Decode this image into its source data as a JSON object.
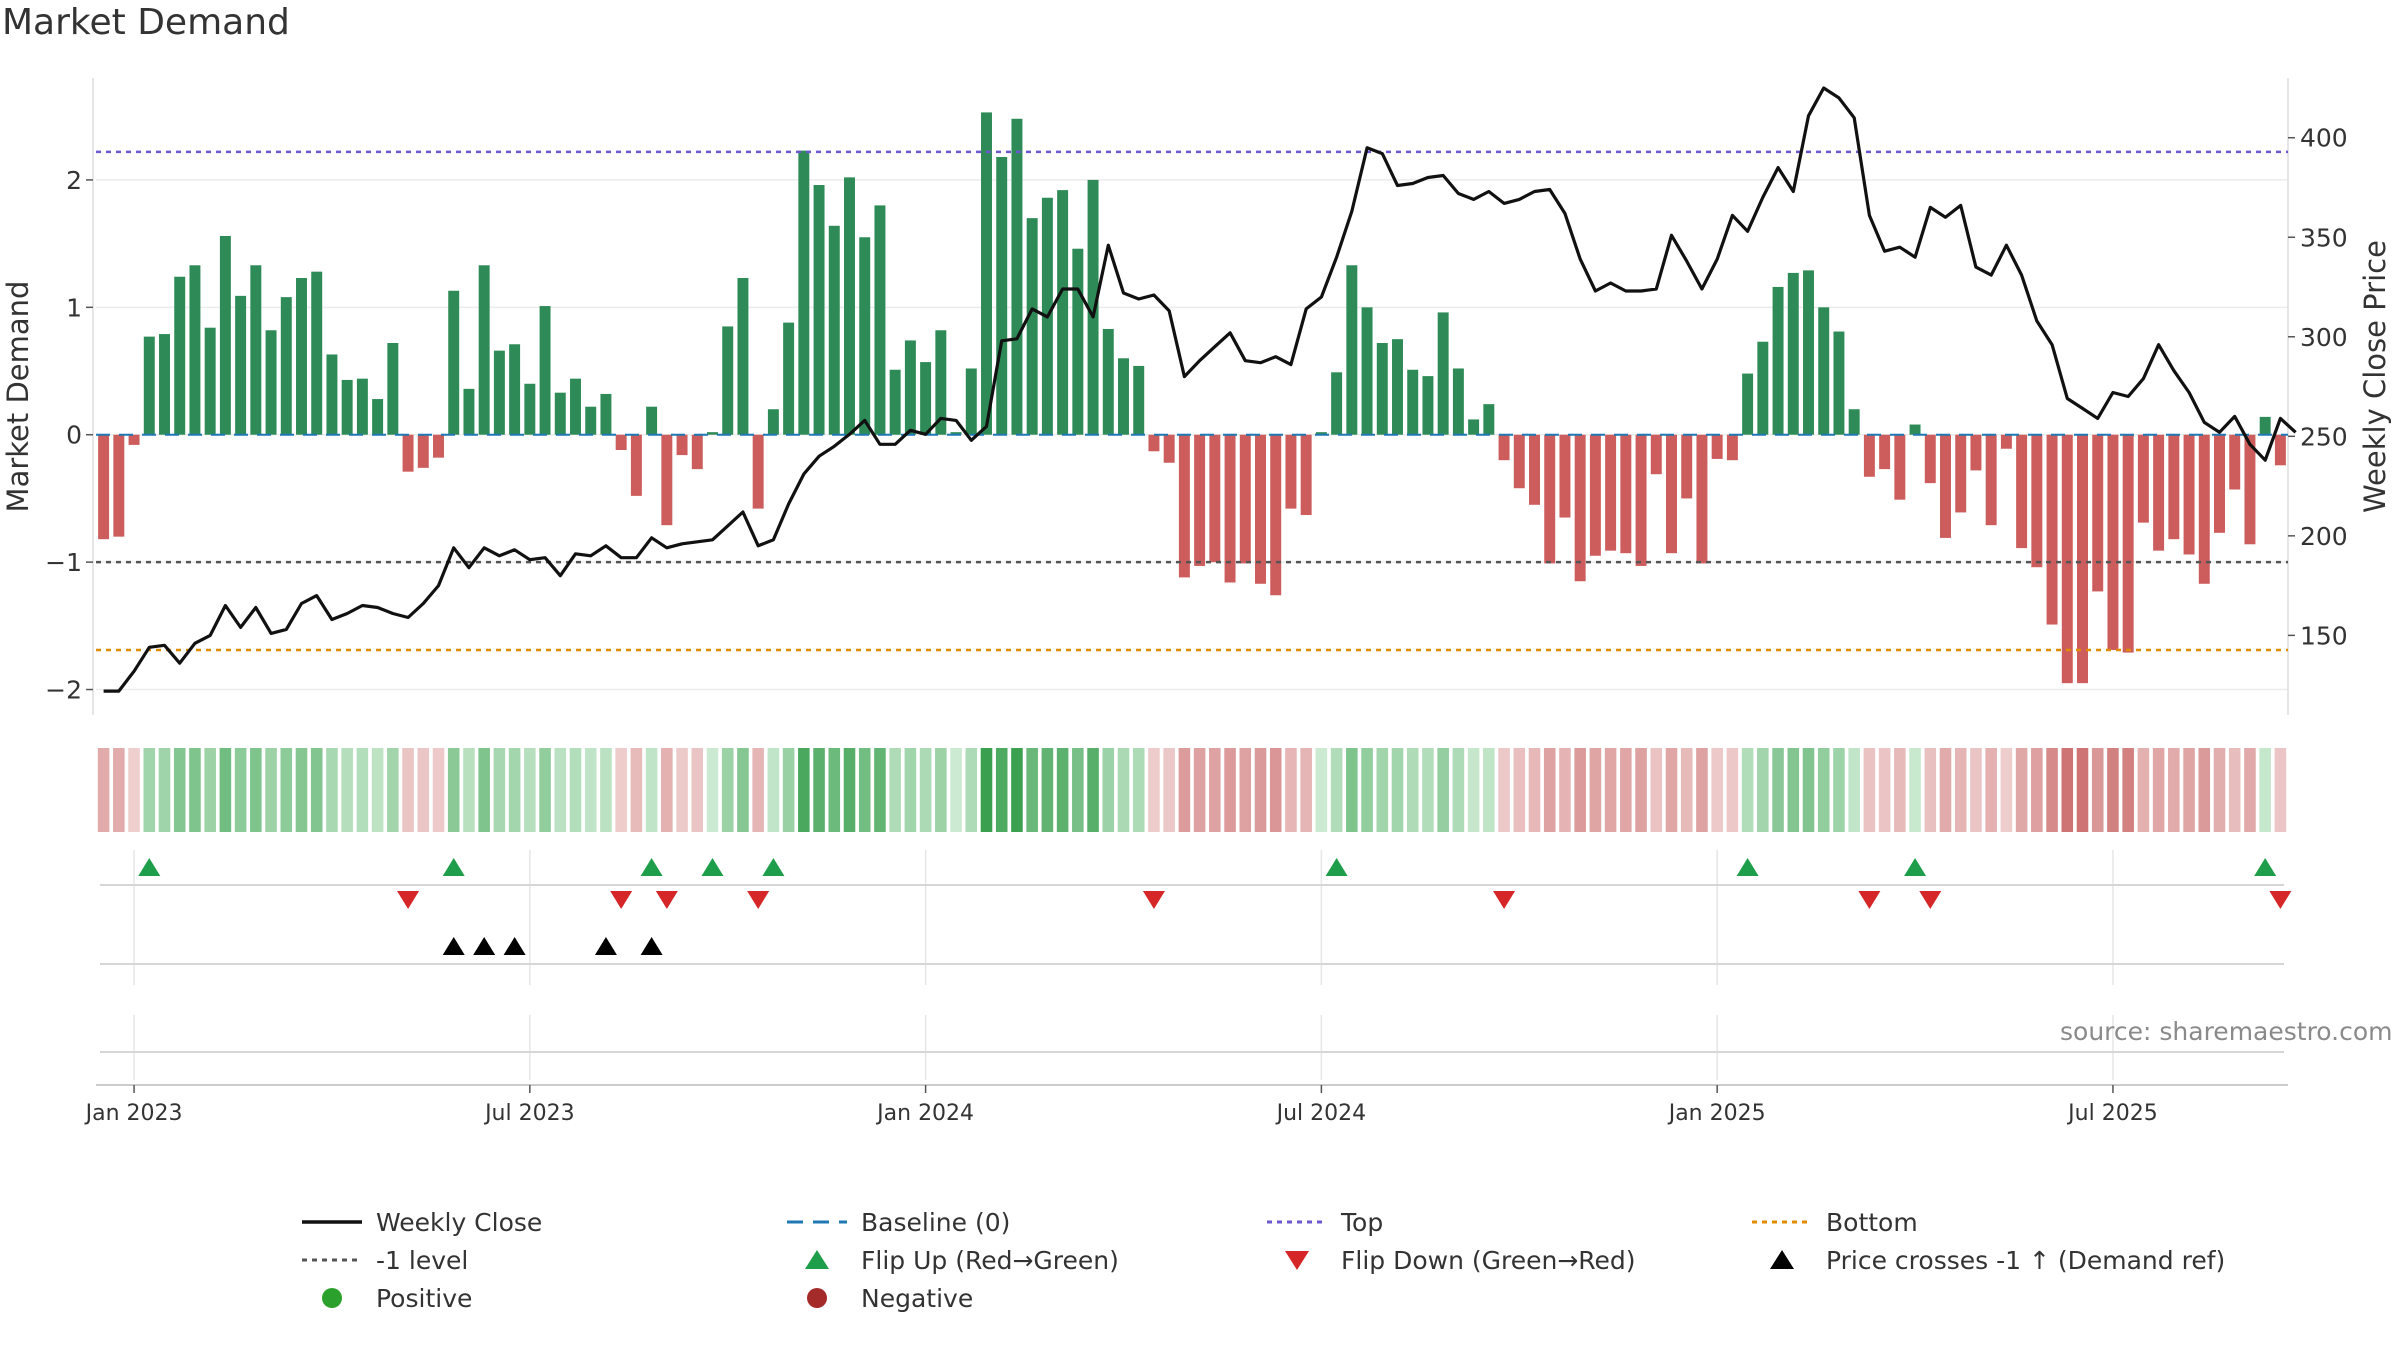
{
  "title": "Market Demand",
  "source": "source: sharemaestro.com",
  "colors": {
    "pos_bar": "#2e8b57",
    "neg_bar": "#cd5c5c",
    "price": "#111111",
    "top": "#6a5acd",
    "bottom": "#e08c00",
    "minus1": "#555555",
    "baseline": "#1f77b4",
    "flip_up": "#1e9e4a",
    "flip_down": "#d62728",
    "cross": "#000000",
    "positive_dot": "#2ca02c",
    "negative_dot": "#a52a2a"
  },
  "chart_data": {
    "type": "bar",
    "title": "Market Demand",
    "ylabel": "Market Demand",
    "y2label": "Weekly Close Price",
    "ylim": [
      -2.2,
      2.8
    ],
    "y2lim": [
      110,
      430
    ],
    "yticks": [
      -2,
      -1,
      0,
      1,
      2
    ],
    "y2ticks": [
      150,
      200,
      250,
      300,
      350,
      400
    ],
    "xlabels": [
      "Jan 2023",
      "Jul 2023",
      "Jan 2024",
      "Jul 2024",
      "Jan 2025",
      "Jul 2025"
    ],
    "xlabel_week_index": [
      2,
      28,
      54,
      80,
      106,
      132
    ],
    "levels": {
      "top": 2.22,
      "bottom": -1.69,
      "minus1": -1,
      "baseline": 0
    },
    "demand": [
      -0.82,
      -0.8,
      -0.08,
      0.77,
      0.79,
      1.24,
      1.33,
      0.84,
      1.56,
      1.09,
      1.33,
      0.82,
      1.08,
      1.23,
      1.28,
      0.63,
      0.43,
      0.44,
      0.28,
      0.72,
      -0.29,
      -0.26,
      -0.18,
      1.13,
      0.36,
      1.33,
      0.66,
      0.71,
      0.4,
      1.01,
      0.33,
      0.44,
      0.22,
      0.32,
      -0.12,
      -0.48,
      0.22,
      -0.71,
      -0.16,
      -0.27,
      0.02,
      0.85,
      1.23,
      -0.58,
      0.2,
      0.88,
      2.23,
      1.96,
      1.64,
      2.02,
      1.55,
      1.8,
      0.51,
      0.74,
      0.57,
      0.82,
      0.02,
      0.52,
      2.53,
      2.18,
      2.48,
      1.7,
      1.86,
      1.92,
      1.46,
      2.0,
      0.83,
      0.6,
      0.54,
      -0.13,
      -0.22,
      -1.12,
      -1.03,
      -1.0,
      -1.16,
      -1.01,
      -1.17,
      -1.26,
      -0.58,
      -0.63,
      0.02,
      0.49,
      1.33,
      1.0,
      0.72,
      0.75,
      0.51,
      0.46,
      0.96,
      0.52,
      0.12,
      0.24,
      -0.2,
      -0.42,
      -0.55,
      -1.01,
      -0.65,
      -1.15,
      -0.95,
      -0.91,
      -0.93,
      -1.03,
      -0.31,
      -0.93,
      -0.5,
      -1.01,
      -0.19,
      -0.2,
      0.48,
      0.73,
      1.16,
      1.27,
      1.29,
      1.0,
      0.81,
      0.2,
      -0.33,
      -0.27,
      -0.51,
      0.08,
      -0.38,
      -0.81,
      -0.61,
      -0.28,
      -0.71,
      -0.11,
      -0.89,
      -1.04,
      -1.49,
      -1.95,
      -1.95,
      -1.23,
      -1.69,
      -1.71,
      -0.69,
      -0.91,
      -0.82,
      -0.94,
      -1.17,
      -0.77,
      -0.43,
      -0.86,
      0.14,
      -0.24
    ],
    "price": [
      122,
      122,
      132,
      144,
      145,
      136,
      146,
      150,
      165,
      154,
      164,
      151,
      153,
      166,
      170,
      158,
      161,
      165,
      164,
      161,
      159,
      166,
      175,
      194,
      184,
      194,
      190,
      193,
      188,
      189,
      180,
      191,
      190,
      195,
      189,
      189,
      199,
      194,
      196,
      197,
      198,
      205,
      212,
      195,
      198,
      216,
      231,
      240,
      245,
      251,
      258,
      246,
      246,
      253,
      251,
      259,
      258,
      248,
      255,
      298,
      299,
      314,
      310,
      324,
      324,
      310,
      346,
      322,
      319,
      321,
      313,
      280,
      288,
      295,
      302,
      288,
      287,
      290,
      286,
      314,
      320,
      340,
      363,
      395,
      392,
      376,
      377,
      380,
      381,
      372,
      369,
      373,
      367,
      369,
      373,
      374,
      362,
      339,
      323,
      327,
      323,
      323,
      324,
      351,
      338,
      324,
      339,
      361,
      353,
      370,
      385,
      373,
      411,
      425,
      420,
      410,
      361,
      343,
      345,
      340,
      365,
      360,
      366,
      335,
      331,
      346,
      331,
      308,
      296,
      269,
      264,
      259,
      272,
      270,
      279,
      296,
      283,
      272,
      257,
      252,
      260,
      246,
      238,
      259,
      252
    ],
    "flip_up": [
      3,
      23,
      36,
      40,
      44,
      81,
      108,
      119,
      142
    ],
    "flip_down": [
      20,
      34,
      37,
      43,
      69,
      92,
      116,
      120,
      143
    ],
    "cross_up": [
      23,
      25,
      27,
      33,
      36
    ],
    "legend": [
      {
        "symbol": "line",
        "color": "#111111",
        "label": "Weekly Close"
      },
      {
        "symbol": "dash",
        "color": "#1f77b4",
        "label": "Baseline (0)"
      },
      {
        "symbol": "dotted",
        "color": "#6a5acd",
        "label": "Top"
      },
      {
        "symbol": "dotted",
        "color": "#e08c00",
        "label": "Bottom"
      },
      {
        "symbol": "dotted",
        "color": "#555555",
        "label": "-1 level"
      },
      {
        "symbol": "tri-up",
        "color": "#1e9e4a",
        "label": "Flip Up (Red→Green)"
      },
      {
        "symbol": "tri-down",
        "color": "#d62728",
        "label": "Flip Down (Green→Red)"
      },
      {
        "symbol": "tri-up",
        "color": "#000000",
        "label": "Price crosses -1 ↑ (Demand ref)"
      },
      {
        "symbol": "dot",
        "color": "#2ca02c",
        "label": "Positive"
      },
      {
        "symbol": "dot",
        "color": "#a52a2a",
        "label": "Negative"
      }
    ]
  }
}
